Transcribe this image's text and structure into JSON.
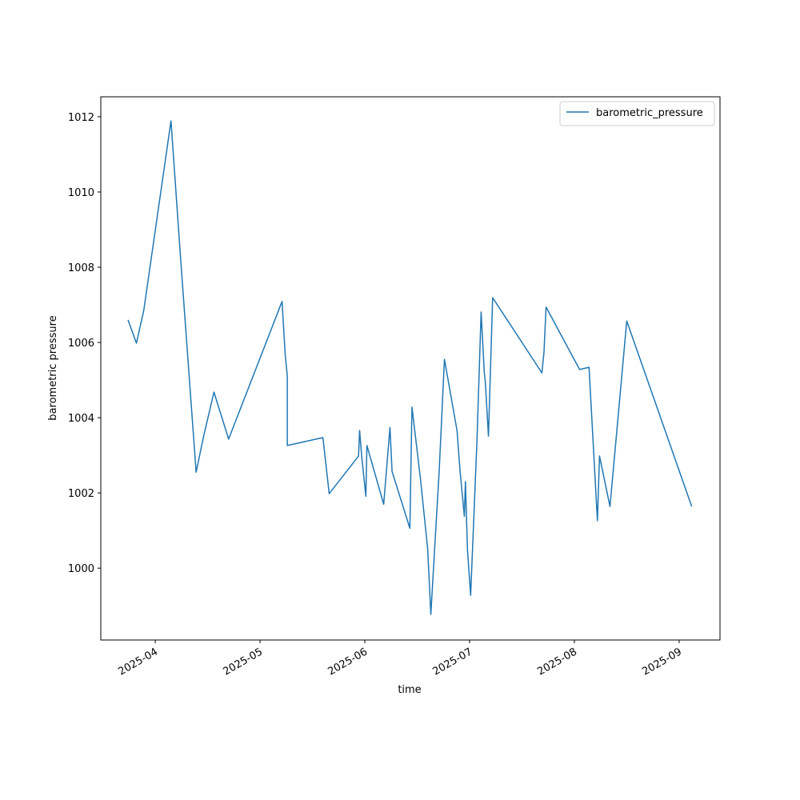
{
  "chart_data": {
    "type": "line",
    "x_label": "time",
    "y_label": "barometric pressure",
    "x": [
      3.74,
      3.82,
      3.89,
      4.15,
      4.24,
      4.39,
      4.46,
      4.56,
      4.7,
      5.21,
      5.24,
      5.26,
      5.26,
      5.6,
      5.66,
      5.94,
      5.95,
      5.97,
      6.01,
      6.02,
      6.18,
      6.24,
      6.26,
      6.43,
      6.45,
      6.53,
      6.6,
      6.63,
      6.71,
      6.76,
      6.88,
      6.91,
      6.95,
      6.96,
      6.98,
      7.01,
      7.07,
      7.11,
      7.14,
      7.15,
      7.18,
      7.22,
      7.69,
      7.71,
      7.73,
      8.05,
      8.14,
      8.22,
      8.24,
      8.34,
      8.5,
      9.12
    ],
    "series": [
      {
        "name": "barometric_pressure",
        "color": "#1f77b4",
        "values": [
          1006.6,
          1005.98,
          1006.85,
          1011.89,
          1008.3,
          1002.55,
          1003.49,
          1004.68,
          1003.43,
          1007.09,
          1005.68,
          1005.11,
          1003.26,
          1003.47,
          1001.98,
          1002.98,
          1003.66,
          1002.98,
          1001.91,
          1003.26,
          1001.7,
          1003.74,
          1002.57,
          1001.06,
          1004.28,
          1002.4,
          1000.51,
          998.77,
          1002.6,
          1005.55,
          1003.66,
          1002.55,
          1001.38,
          1002.3,
          1000.47,
          999.28,
          1003.36,
          1006.81,
          1005.21,
          1004.96,
          1003.51,
          1007.19,
          1005.19,
          1005.74,
          1006.94,
          1005.28,
          1005.34,
          1001.26,
          1002.98,
          1001.64,
          1006.57,
          1001.64
        ]
      }
    ],
    "xlim": [
      3.48,
      9.39
    ],
    "xticks": [
      {
        "value": 4,
        "label": "2025-04"
      },
      {
        "value": 5,
        "label": "2025-05"
      },
      {
        "value": 6,
        "label": "2025-06"
      },
      {
        "value": 7,
        "label": "2025-07"
      },
      {
        "value": 8,
        "label": "2025-08"
      },
      {
        "value": 9,
        "label": "2025-09"
      }
    ],
    "ylim": [
      998.09,
      1012.53
    ],
    "yticks": [
      1000,
      1002,
      1004,
      1006,
      1008,
      1010,
      1012
    ],
    "grid": false,
    "legend": "upper right"
  }
}
